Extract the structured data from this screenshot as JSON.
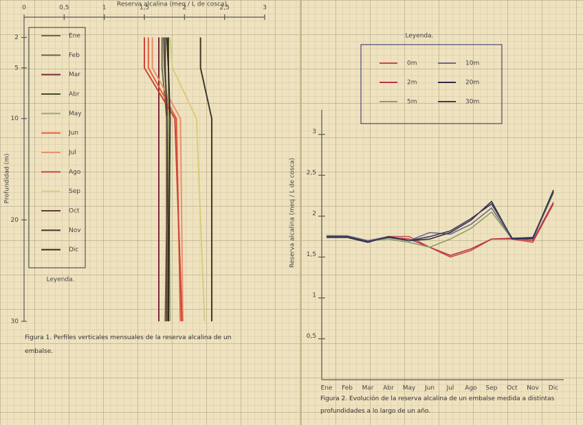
{
  "chart_data": [
    {
      "type": "profile",
      "xlabel": "Reserva alcalina (meq / L de cosca)",
      "ylabel": "Profundidad (m)",
      "legend_title": "Leyenda.",
      "caption": "Figura 1. Perfiles verticales mensuales de la reserva alcalina de un embalse.",
      "y": [
        2,
        5,
        10,
        30
      ],
      "xlim": [
        0,
        3
      ],
      "ylim": [
        0,
        30
      ],
      "y_inverted": true,
      "xticks": [
        0,
        {
          "value": 0.5,
          "label": "0,5"
        },
        1,
        {
          "value": 1.5,
          "label": "1,5"
        },
        2,
        {
          "value": 2.5,
          "label": "2,5"
        },
        3
      ],
      "yticks": [
        2,
        5,
        10,
        20,
        30
      ],
      "series": [
        {
          "name": "Ene",
          "color": "#6b6b4f",
          "values": [
            1.72,
            1.72,
            1.78,
            1.78
          ]
        },
        {
          "name": "Feb",
          "color": "#6b5e4a",
          "values": [
            1.74,
            1.75,
            1.8,
            1.76
          ]
        },
        {
          "name": "Mar",
          "color": "#7a2a3a",
          "values": [
            1.68,
            1.68,
            1.68,
            1.68
          ]
        },
        {
          "name": "Abr",
          "color": "#3f4a2a",
          "values": [
            1.8,
            1.8,
            1.8,
            1.8
          ]
        },
        {
          "name": "May",
          "color": "#9aa86a",
          "values": [
            1.78,
            1.8,
            1.8,
            1.82
          ]
        },
        {
          "name": "Jun",
          "color": "#e0603a",
          "values": [
            1.55,
            1.55,
            1.9,
            1.95
          ]
        },
        {
          "name": "Jul",
          "color": "#e89070",
          "values": [
            1.6,
            1.6,
            1.95,
            1.98
          ]
        },
        {
          "name": "Ago",
          "color": "#c9443a",
          "values": [
            1.5,
            1.5,
            1.88,
            1.97
          ]
        },
        {
          "name": "Sep",
          "color": "#d9cc7a",
          "values": [
            1.82,
            1.85,
            2.15,
            2.25
          ]
        },
        {
          "name": "Oct",
          "color": "#5a3a30",
          "values": [
            1.76,
            1.76,
            1.78,
            1.78
          ]
        },
        {
          "name": "Nov",
          "color": "#3a3a2a",
          "values": [
            2.2,
            2.2,
            2.34,
            2.34
          ]
        },
        {
          "name": "Dic",
          "color": "#2a2a25",
          "values": [
            1.78,
            1.8,
            1.82,
            1.8
          ]
        }
      ]
    },
    {
      "type": "line",
      "ylabel": "Reserva alcalina (meq / L de cosca)",
      "legend_title": "Leyenda.",
      "caption": "Figura 2. Evolución de la reserva alcalina de un embalse medida a distintas profundidades a lo largo de un año.",
      "categories": [
        "Ene",
        "Feb",
        "Mar",
        "Abr",
        "May",
        "Jun",
        "Jul",
        "Ago",
        "Sep",
        "Oct",
        "Nov",
        "Dic"
      ],
      "ylim": [
        0,
        3.3
      ],
      "yticks": [
        {
          "value": 0.5,
          "label": "0,5"
        },
        1,
        {
          "value": 1.5,
          "label": "1,5"
        },
        2,
        {
          "value": 2.5,
          "label": "2,5"
        },
        3
      ],
      "series": [
        {
          "name": "0m",
          "color": "#c94a4a",
          "values": [
            1.75,
            1.75,
            1.68,
            1.75,
            1.75,
            1.62,
            1.5,
            1.58,
            1.72,
            1.72,
            1.68,
            2.15
          ]
        },
        {
          "name": "2m",
          "color": "#b8344a",
          "values": [
            1.76,
            1.75,
            1.7,
            1.74,
            1.72,
            1.62,
            1.52,
            1.6,
            1.72,
            1.73,
            1.7,
            2.17
          ]
        },
        {
          "name": "5m",
          "color": "#8aa060",
          "values": [
            1.75,
            1.75,
            1.7,
            1.72,
            1.68,
            1.62,
            1.72,
            1.85,
            2.05,
            1.72,
            1.72,
            2.28
          ]
        },
        {
          "name": "10m",
          "color": "#6a6a8a",
          "values": [
            1.76,
            1.76,
            1.7,
            1.75,
            1.7,
            1.8,
            1.78,
            1.9,
            2.1,
            1.72,
            1.72,
            2.3
          ]
        },
        {
          "name": "20m",
          "color": "#2e2a4a",
          "values": [
            1.74,
            1.74,
            1.68,
            1.75,
            1.7,
            1.72,
            1.8,
            1.95,
            2.18,
            1.72,
            1.73,
            2.32
          ]
        },
        {
          "name": "30m",
          "color": "#3a3a5a",
          "values": [
            1.75,
            1.75,
            1.69,
            1.74,
            1.7,
            1.75,
            1.82,
            1.97,
            2.15,
            1.73,
            1.74,
            2.3
          ]
        }
      ]
    }
  ]
}
